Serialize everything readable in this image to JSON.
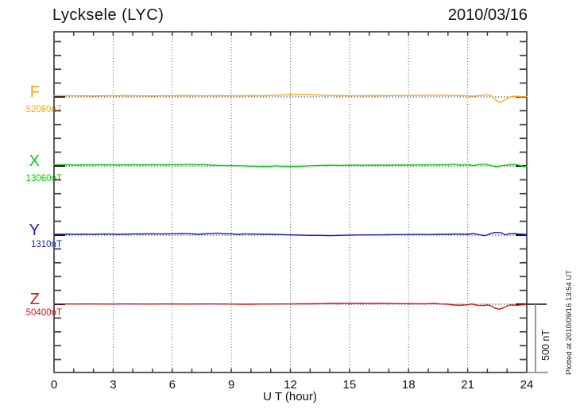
{
  "annotations": {
    "scale_label": "500 nT",
    "plotted_note": "Plotted at 2010/09/16 13:54 UT"
  },
  "chart_data": {
    "type": "line",
    "title": "Lycksele (LYC)",
    "date": "2010/03/16",
    "xlabel": "U T (hour)",
    "x_range": [
      0,
      24
    ],
    "x_ticks": [
      0,
      3,
      6,
      9,
      12,
      15,
      18,
      21,
      24
    ],
    "grid": "vertical dotted gridlines every 3 hours, dotted horizontal baseline per trace",
    "legend_position": "left margin, one colored label per trace",
    "scale_bar_nT": 500,
    "series": [
      {
        "name": "F",
        "baseline_label": "52080nT",
        "baseline_nT": 52080,
        "color": "#FFA615",
        "points": [
          [
            0,
            8
          ],
          [
            0.5,
            9
          ],
          [
            1,
            8
          ],
          [
            1.5,
            8
          ],
          [
            2,
            7
          ],
          [
            2.5,
            8
          ],
          [
            3,
            8
          ],
          [
            3.5,
            9
          ],
          [
            4,
            8
          ],
          [
            4.5,
            8
          ],
          [
            5,
            7
          ],
          [
            5.5,
            8
          ],
          [
            6,
            8
          ],
          [
            6.5,
            9
          ],
          [
            7,
            9
          ],
          [
            7.5,
            8
          ],
          [
            8,
            8
          ],
          [
            8.5,
            9
          ],
          [
            9,
            8
          ],
          [
            9.5,
            8
          ],
          [
            10,
            9
          ],
          [
            10.5,
            8
          ],
          [
            11,
            10
          ],
          [
            11.5,
            13
          ],
          [
            12,
            16
          ],
          [
            12.5,
            18
          ],
          [
            13,
            16
          ],
          [
            13.5,
            13
          ],
          [
            14,
            10
          ],
          [
            14.5,
            9
          ],
          [
            15,
            8
          ],
          [
            15.5,
            8
          ],
          [
            16,
            9
          ],
          [
            16.5,
            9
          ],
          [
            17,
            10
          ],
          [
            17.5,
            10
          ],
          [
            18,
            10
          ],
          [
            18.5,
            11
          ],
          [
            19,
            12
          ],
          [
            19.5,
            13
          ],
          [
            20,
            12
          ],
          [
            20.5,
            10
          ],
          [
            21,
            8
          ],
          [
            21.25,
            5
          ],
          [
            21.5,
            8
          ],
          [
            21.75,
            12
          ],
          [
            22,
            15
          ],
          [
            22.2,
            8
          ],
          [
            22.4,
            -18
          ],
          [
            22.6,
            -38
          ],
          [
            22.8,
            -30
          ],
          [
            23,
            -10
          ],
          [
            23.2,
            2
          ],
          [
            23.4,
            5
          ],
          [
            23.6,
            3
          ],
          [
            23.8,
            1
          ],
          [
            24,
            3
          ]
        ]
      },
      {
        "name": "X",
        "baseline_label": "13060nT",
        "baseline_nT": 13060,
        "color": "#00CC11",
        "points": [
          [
            0,
            8
          ],
          [
            0.5,
            10
          ],
          [
            1,
            7
          ],
          [
            1.5,
            9
          ],
          [
            2,
            8
          ],
          [
            2.5,
            10
          ],
          [
            3,
            9
          ],
          [
            3.5,
            8
          ],
          [
            4,
            10
          ],
          [
            4.5,
            9
          ],
          [
            5,
            10
          ],
          [
            5.5,
            9
          ],
          [
            6,
            10
          ],
          [
            6.5,
            10
          ],
          [
            7,
            13
          ],
          [
            7.3,
            9
          ],
          [
            7.6,
            11
          ],
          [
            8,
            5
          ],
          [
            8.5,
            3
          ],
          [
            9,
            3
          ],
          [
            9.5,
            1
          ],
          [
            10,
            -2
          ],
          [
            10.5,
            -4
          ],
          [
            11,
            -3
          ],
          [
            11.3,
            2
          ],
          [
            11.6,
            -4
          ],
          [
            12,
            -5
          ],
          [
            12.5,
            -3
          ],
          [
            13,
            1
          ],
          [
            13.5,
            4
          ],
          [
            14,
            6
          ],
          [
            14.5,
            4
          ],
          [
            15,
            6
          ],
          [
            15.5,
            5
          ],
          [
            16,
            6
          ],
          [
            16.5,
            7
          ],
          [
            17,
            6
          ],
          [
            17.5,
            8
          ],
          [
            18,
            7
          ],
          [
            18.5,
            8
          ],
          [
            19,
            8
          ],
          [
            19.5,
            10
          ],
          [
            20,
            8
          ],
          [
            20.3,
            14
          ],
          [
            20.6,
            7
          ],
          [
            21,
            10
          ],
          [
            21.3,
            3
          ],
          [
            21.6,
            12
          ],
          [
            21.9,
            14
          ],
          [
            22.1,
            5
          ],
          [
            22.3,
            -1
          ],
          [
            22.5,
            -6
          ],
          [
            22.7,
            1
          ],
          [
            23,
            7
          ],
          [
            23.3,
            11
          ],
          [
            23.5,
            9
          ],
          [
            23.7,
            3
          ],
          [
            23.85,
            -6
          ],
          [
            24,
            -3
          ]
        ]
      },
      {
        "name": "Y",
        "baseline_label": "1310nT",
        "baseline_nT": 1310,
        "color": "#1822CE",
        "points": [
          [
            0,
            6
          ],
          [
            0.5,
            7
          ],
          [
            1,
            6
          ],
          [
            1.5,
            7
          ],
          [
            2,
            6
          ],
          [
            2.5,
            8
          ],
          [
            3,
            7
          ],
          [
            3.5,
            6
          ],
          [
            4,
            8
          ],
          [
            4.5,
            9
          ],
          [
            5,
            10
          ],
          [
            5.5,
            8
          ],
          [
            6,
            10
          ],
          [
            6.5,
            12
          ],
          [
            7,
            10
          ],
          [
            7.3,
            6
          ],
          [
            7.6,
            9
          ],
          [
            8,
            12
          ],
          [
            8.3,
            14
          ],
          [
            8.6,
            10
          ],
          [
            9,
            10
          ],
          [
            9.3,
            5
          ],
          [
            9.6,
            8
          ],
          [
            10,
            8
          ],
          [
            10.5,
            7
          ],
          [
            11,
            6
          ],
          [
            11.5,
            4
          ],
          [
            12,
            2
          ],
          [
            12.5,
            0
          ],
          [
            13,
            -2
          ],
          [
            13.5,
            -2
          ],
          [
            14,
            -4
          ],
          [
            14.5,
            -2
          ],
          [
            15,
            0
          ],
          [
            15.5,
            1
          ],
          [
            16,
            2
          ],
          [
            16.5,
            2
          ],
          [
            17,
            3
          ],
          [
            17.5,
            4
          ],
          [
            18,
            4
          ],
          [
            18.5,
            5
          ],
          [
            19,
            4
          ],
          [
            19.5,
            6
          ],
          [
            20,
            6
          ],
          [
            20.5,
            8
          ],
          [
            21,
            6
          ],
          [
            21.3,
            12
          ],
          [
            21.6,
            2
          ],
          [
            21.9,
            -4
          ],
          [
            22.1,
            8
          ],
          [
            22.4,
            20
          ],
          [
            22.7,
            18
          ],
          [
            22.9,
            1
          ],
          [
            23.1,
            10
          ],
          [
            23.35,
            12
          ],
          [
            23.6,
            8
          ],
          [
            23.8,
            7
          ],
          [
            24,
            4
          ]
        ]
      },
      {
        "name": "Z",
        "baseline_label": "50400nT",
        "baseline_nT": 50400,
        "color": "#DE1212",
        "points": [
          [
            0,
            2
          ],
          [
            0.5,
            2
          ],
          [
            1,
            1
          ],
          [
            1.5,
            2
          ],
          [
            2,
            2
          ],
          [
            2.5,
            1
          ],
          [
            3,
            1
          ],
          [
            3.5,
            2
          ],
          [
            4,
            2
          ],
          [
            4.5,
            1
          ],
          [
            5,
            1
          ],
          [
            5.5,
            2
          ],
          [
            6,
            2
          ],
          [
            6.5,
            1
          ],
          [
            7,
            1
          ],
          [
            7.5,
            2
          ],
          [
            8,
            2
          ],
          [
            8.5,
            1
          ],
          [
            9,
            1
          ],
          [
            9.5,
            0
          ],
          [
            10,
            0
          ],
          [
            10.5,
            1
          ],
          [
            11,
            1
          ],
          [
            11.5,
            2
          ],
          [
            12,
            2
          ],
          [
            12.5,
            3
          ],
          [
            13,
            3
          ],
          [
            13.5,
            4
          ],
          [
            14,
            6
          ],
          [
            14.5,
            6
          ],
          [
            15,
            5
          ],
          [
            15.5,
            6
          ],
          [
            16,
            5
          ],
          [
            16.5,
            6
          ],
          [
            17,
            5
          ],
          [
            17.5,
            4
          ],
          [
            18,
            4
          ],
          [
            18.5,
            3
          ],
          [
            19,
            4
          ],
          [
            19.3,
            6
          ],
          [
            19.6,
            2
          ],
          [
            20,
            0
          ],
          [
            20.3,
            -6
          ],
          [
            20.6,
            -8
          ],
          [
            21,
            -4
          ],
          [
            21.2,
            2
          ],
          [
            21.5,
            -8
          ],
          [
            21.8,
            -10
          ],
          [
            22,
            -5
          ],
          [
            22.2,
            -12
          ],
          [
            22.4,
            -30
          ],
          [
            22.6,
            -36
          ],
          [
            22.8,
            -28
          ],
          [
            23,
            -12
          ],
          [
            23.2,
            -6
          ],
          [
            23.5,
            -8
          ],
          [
            23.8,
            -4
          ],
          [
            24,
            0
          ]
        ]
      }
    ]
  }
}
